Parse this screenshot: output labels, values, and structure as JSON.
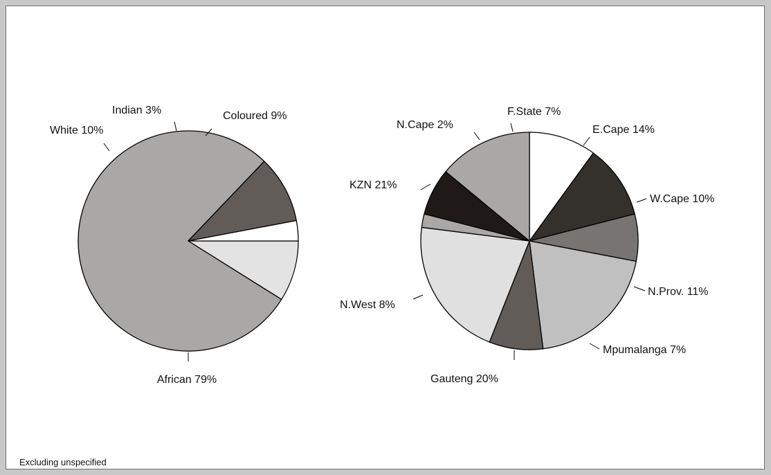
{
  "footnote": "Excluding unspecified",
  "chart_data": [
    {
      "type": "pie",
      "categories": [
        "Coloured",
        "African",
        "White",
        "Indian"
      ],
      "values": [
        9,
        79,
        10,
        3
      ],
      "labels": [
        "Coloured 9%",
        "African 79%",
        "White 10%",
        "Indian 3%"
      ],
      "colors": [
        "#e3e3e3",
        "#a9a8a6",
        "#625c59",
        "#ffffff"
      ],
      "start_angle_deg": 0,
      "direction": "clockwise",
      "legend": "none"
    },
    {
      "type": "pie",
      "categories": [
        "W.Cape",
        "N.Prov.",
        "Mpumalanga",
        "Gauteng",
        "N.West",
        "KZN",
        "N.Cape",
        "F.State",
        "E.Cape"
      ],
      "values": [
        10,
        11,
        7,
        20,
        8,
        21,
        2,
        7,
        14
      ],
      "labels": [
        "W.Cape 10%",
        "N.Prov. 11%",
        "Mpumalanga 7%",
        "Gauteng 20%",
        "N.West 8%",
        "KZN 21%",
        "N.Cape 2%",
        "F.State 7%",
        "E.Cape 14%"
      ],
      "colors": [
        "#ffffff",
        "#34312d",
        "#777472",
        "#c0c0c0",
        "#625c59",
        "#e0e0e0",
        "#a9a8a6",
        "#1f1a18",
        "#a9a8a6"
      ],
      "start_angle_deg": 90,
      "direction": "clockwise",
      "legend": "none"
    }
  ]
}
